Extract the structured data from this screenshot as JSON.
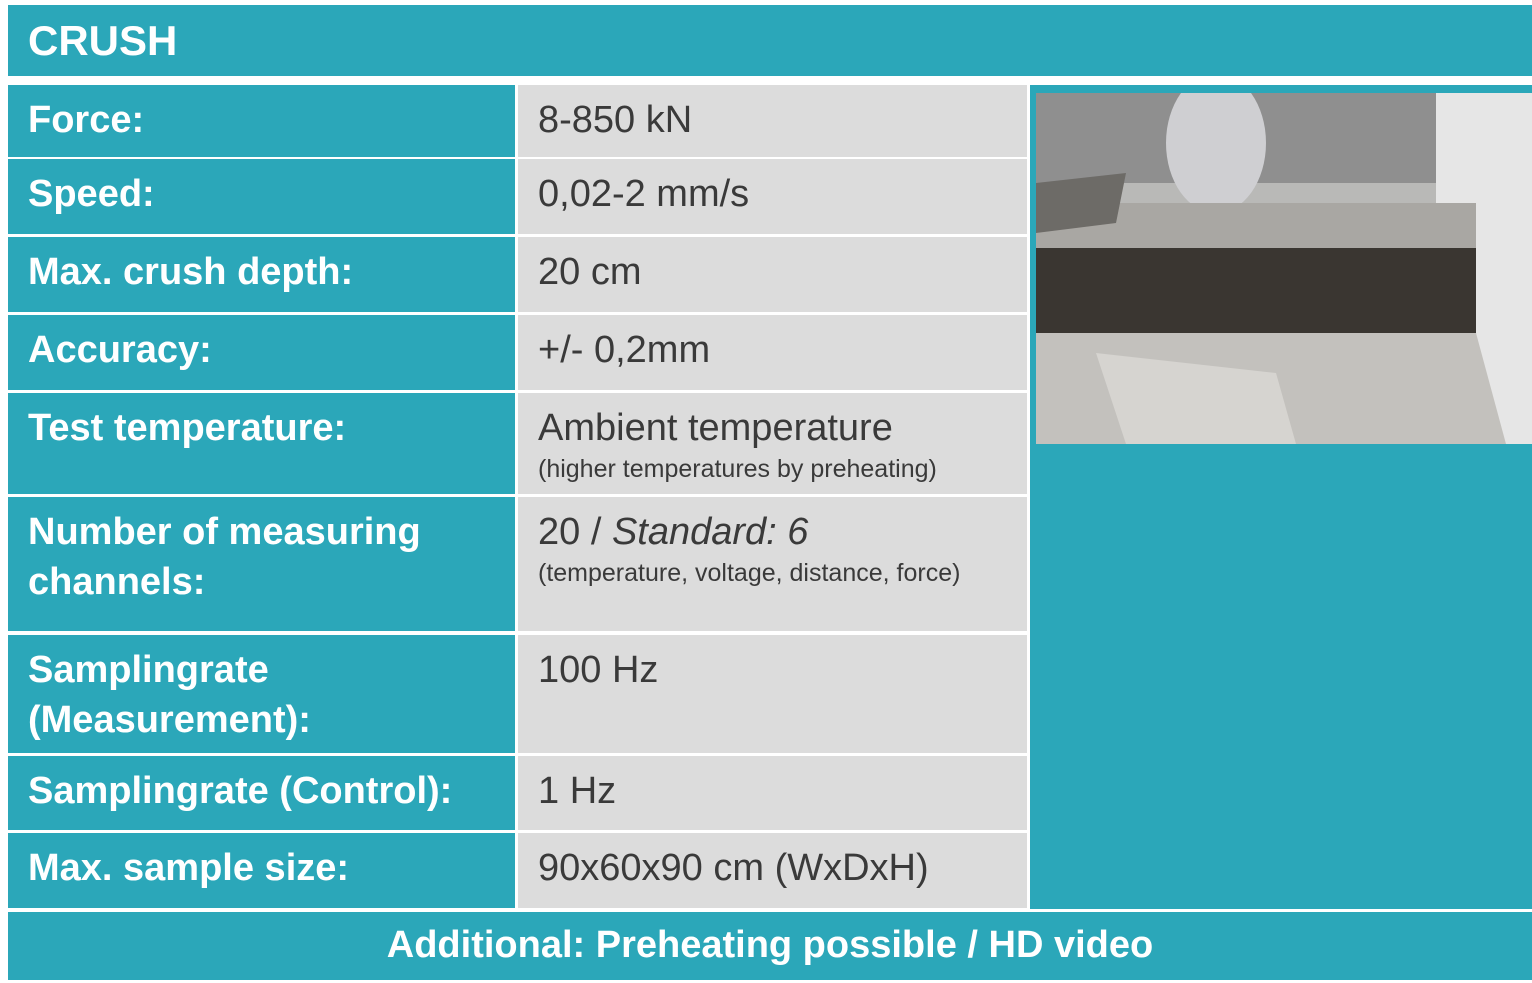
{
  "header": {
    "title": "CRUSH"
  },
  "table": {
    "rows": [
      {
        "label": "Force:",
        "value": "8-850 kN"
      },
      {
        "label": "Speed:",
        "value": "0,02-2 mm/s"
      },
      {
        "label": "Max. crush depth:",
        "value": "20 cm"
      },
      {
        "label": "Accuracy:",
        "value": "+/- 0,2mm"
      },
      {
        "label": "Test temperature:",
        "value": "Ambient temperature",
        "note": "(higher temperatures by preheating)"
      },
      {
        "label": "Number of measuring channels:",
        "value": "20 / ",
        "value_italic": "Standard: 6",
        "note": "(temperature, voltage, distance, force)"
      },
      {
        "label": "Samplingrate (Measurement):",
        "value": "100 Hz"
      },
      {
        "label": "Samplingrate (Control):",
        "value": "1 Hz"
      },
      {
        "label": "Max. sample size:",
        "value": "90x60x90 cm (WxDxH)"
      }
    ]
  },
  "footer": {
    "text": "Additional: Preheating possible / HD video"
  }
}
